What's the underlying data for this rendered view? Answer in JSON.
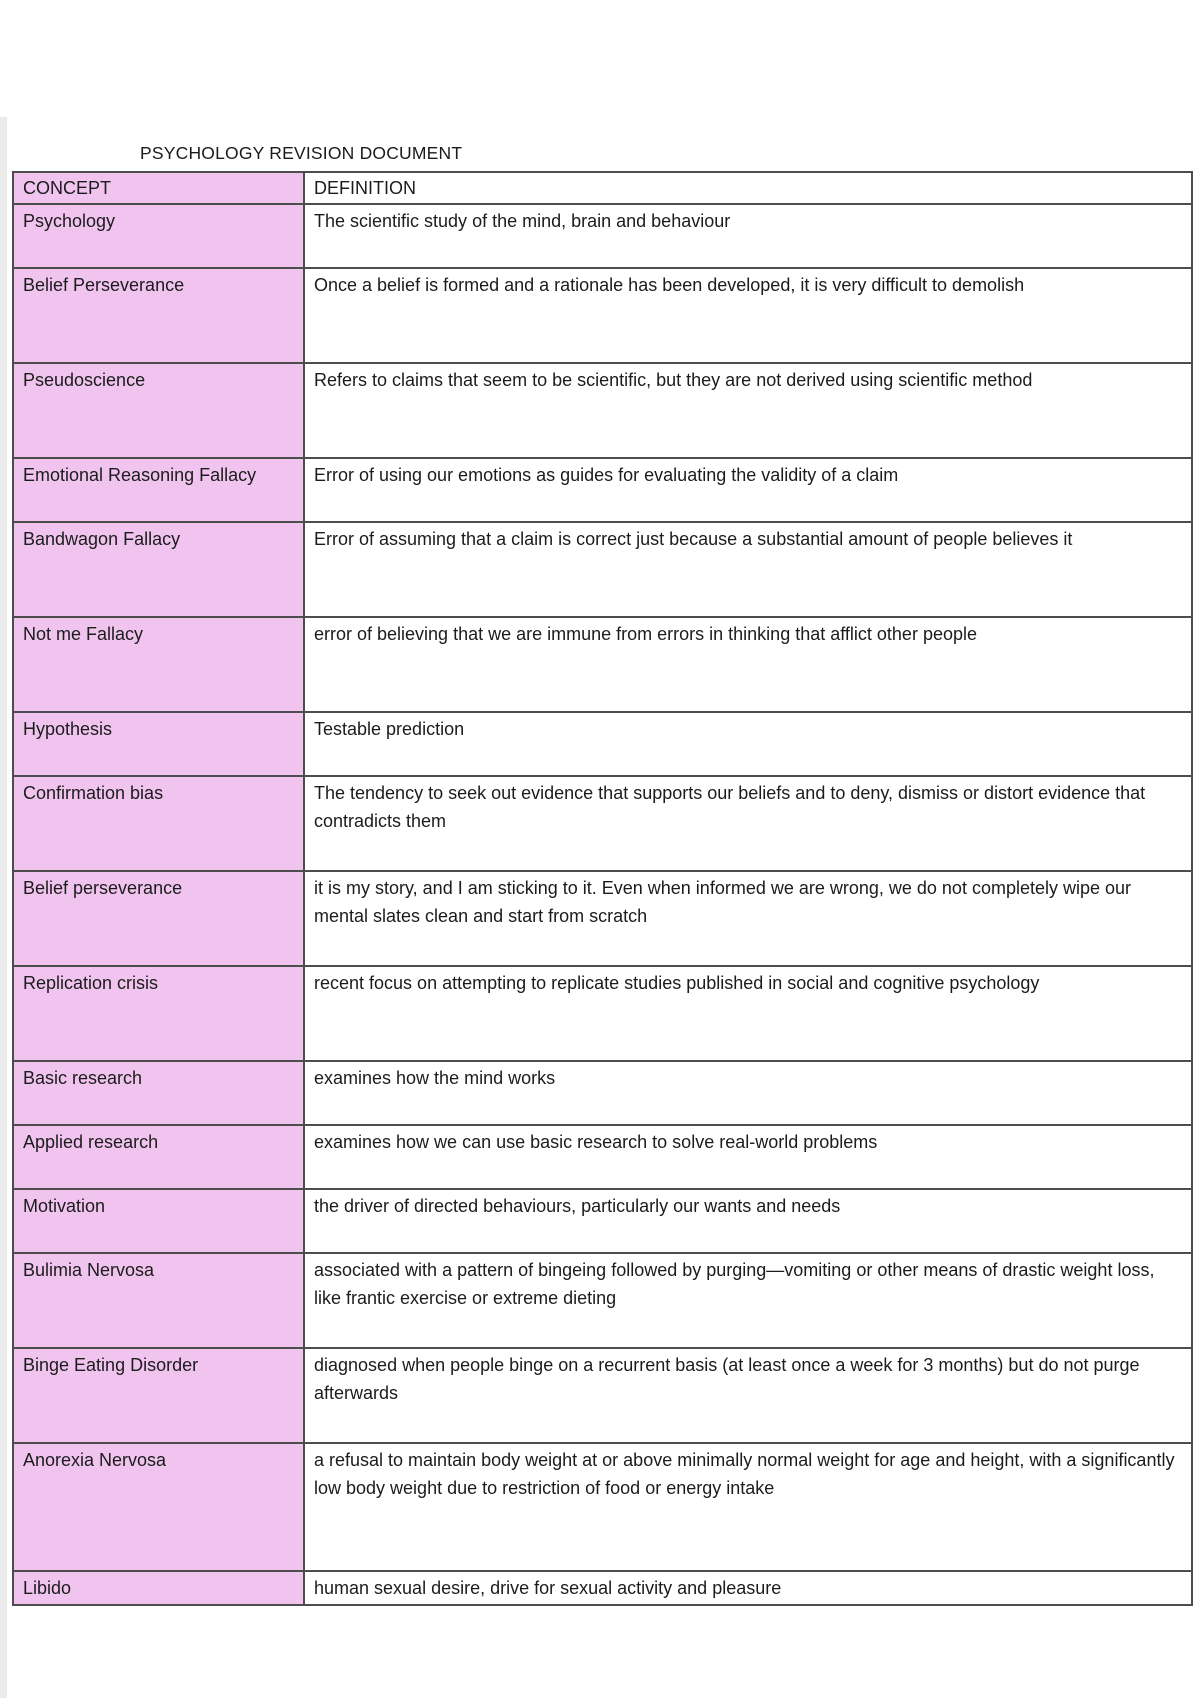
{
  "page": {
    "title": "PSYCHOLOGY REVISION DOCUMENT"
  },
  "colors": {
    "concept_column_bg": "#f0c4ee",
    "grid_border": "#4d4d4d",
    "text": "#1c1c1c"
  },
  "table": {
    "headers": {
      "concept": "CONCEPT",
      "definition": "DEFINITION"
    },
    "rows": [
      {
        "concept": "Psychology",
        "definition": "The scientific study of the mind, brain and behaviour"
      },
      {
        "concept": "Belief Perseverance",
        "definition": "Once a belief is formed and a rationale has been developed, it is very difficult to demolish"
      },
      {
        "concept": "Pseudoscience",
        "definition": "Refers to claims that seem to be scientific, but they are not derived using scientific method"
      },
      {
        "concept": "Emotional Reasoning Fallacy",
        "definition": "Error of using our emotions as guides for evaluating the validity of a claim"
      },
      {
        "concept": "Bandwagon Fallacy",
        "definition": "Error of assuming that a claim is correct just because a substantial amount of people believes it"
      },
      {
        "concept": "Not me Fallacy",
        "definition": "error of believing that we are immune from errors in thinking that afflict other people"
      },
      {
        "concept": "Hypothesis",
        "definition": "Testable prediction"
      },
      {
        "concept": "Confirmation bias",
        "definition": "The tendency to seek out evidence that supports our beliefs and to deny, dismiss or distort evidence that contradicts them"
      },
      {
        "concept": "Belief perseverance",
        "definition": "it is my story, and I am sticking to it. Even when informed we are wrong, we do not completely wipe our mental slates clean and start from scratch"
      },
      {
        "concept": "Replication crisis",
        "definition": "recent focus on attempting to replicate studies published in social and cognitive psychology"
      },
      {
        "concept": "Basic research",
        "definition": "examines how the mind works"
      },
      {
        "concept": "Applied research",
        "definition": "examines how we can use basic research to solve real-world problems"
      },
      {
        "concept": "Motivation",
        "definition": "the driver of directed behaviours, particularly our wants and needs"
      },
      {
        "concept": "Bulimia Nervosa",
        "definition": "associated with a pattern of bingeing followed by purging—vomiting or other means of drastic weight loss, like frantic exercise or extreme dieting"
      },
      {
        "concept": "Binge Eating Disorder",
        "definition": "diagnosed when people binge on a recurrent basis (at least once a week for 3 months) but do not purge afterwards"
      },
      {
        "concept": "Anorexia Nervosa",
        "definition": "a refusal to maintain body weight at or above minimally normal weight for age and height, with a significantly low body weight due to restriction of food or energy intake"
      },
      {
        "concept": "Libido",
        "definition": "human sexual desire, drive for sexual activity and pleasure"
      }
    ]
  }
}
